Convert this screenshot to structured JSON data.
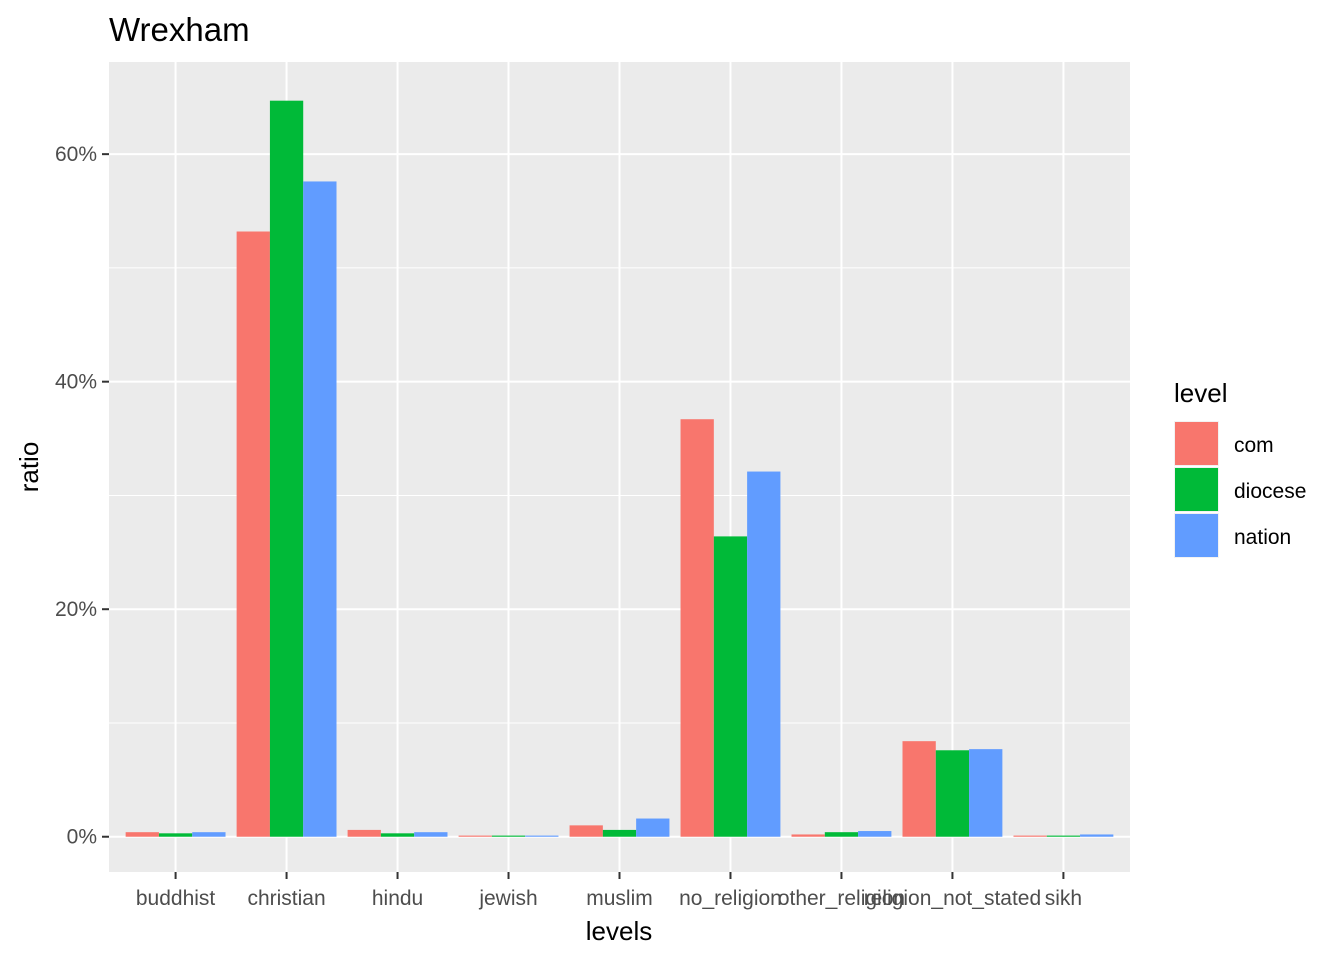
{
  "chart_data": {
    "type": "bar",
    "title": "Wrexham",
    "xlabel": "levels",
    "ylabel": "ratio",
    "categories": [
      "buddhist",
      "christian",
      "hindu",
      "jewish",
      "muslim",
      "no_religion",
      "other_religion",
      "religion_not_stated",
      "sikh"
    ],
    "series": [
      {
        "name": "com",
        "color": "#F8766D",
        "values": [
          0.4,
          53.2,
          0.6,
          0.1,
          1.0,
          36.7,
          0.2,
          8.4,
          0.1
        ]
      },
      {
        "name": "diocese",
        "color": "#00BA38",
        "values": [
          0.3,
          64.7,
          0.3,
          0.1,
          0.6,
          26.4,
          0.4,
          7.6,
          0.1
        ]
      },
      {
        "name": "nation",
        "color": "#619CFF",
        "values": [
          0.4,
          57.6,
          0.4,
          0.1,
          1.6,
          32.1,
          0.5,
          7.7,
          0.2
        ]
      }
    ],
    "ylim": [
      -3.1,
      68.1
    ],
    "yticks": [
      0,
      20,
      40,
      60
    ],
    "ytick_labels": [
      "0%",
      "20%",
      "40%",
      "60%"
    ],
    "grid": true,
    "panel_background": "#EBEBEB",
    "legend": {
      "title": "level",
      "position": "right"
    }
  }
}
